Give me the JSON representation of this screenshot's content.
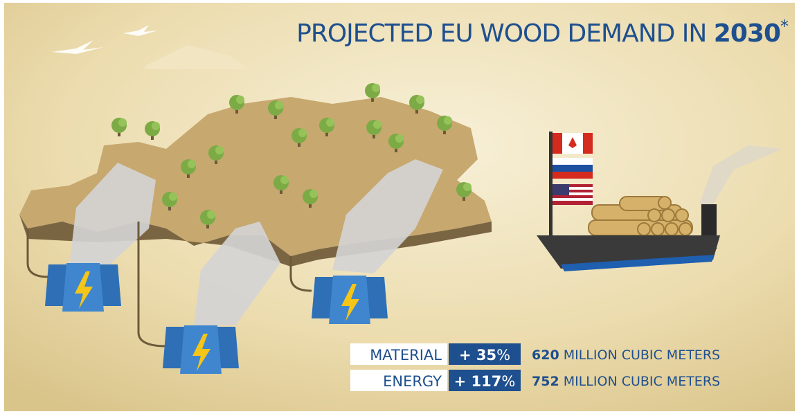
{
  "title": {
    "text": "PROJECTED EU WOOD DEMAND IN ",
    "year": "2030",
    "mark": "*"
  },
  "rows": [
    {
      "label": "MATERIAL",
      "sign": "+ ",
      "change": "35",
      "unit": "%",
      "amount": "620",
      "amount_text": " MILLION CUBIC METERS"
    },
    {
      "label": "ENERGY",
      "sign": "+ ",
      "change": "117",
      "unit": "%",
      "amount": "752",
      "amount_text": " MILLION CUBIC METERS"
    }
  ]
}
